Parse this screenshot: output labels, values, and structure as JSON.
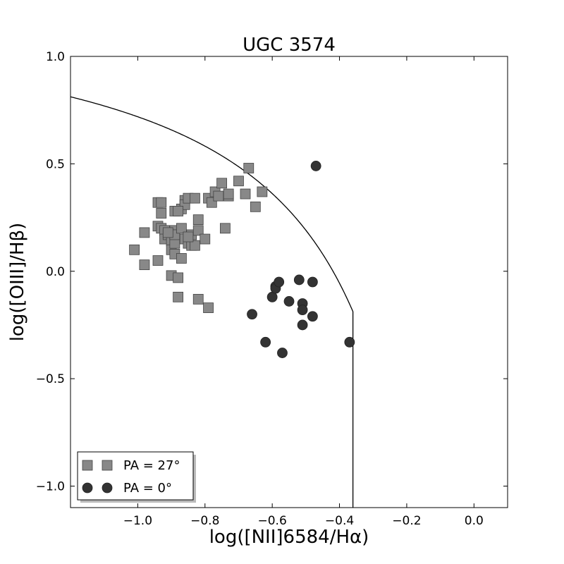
{
  "chart_data": {
    "type": "scatter",
    "title": "UGC 3574",
    "xlabel": "log([NII]6584/Hα)",
    "ylabel": "log([OIII]/Hβ)",
    "xlim": [
      -1.2,
      0.1
    ],
    "ylim": [
      -1.1,
      1.0
    ],
    "xticks": [
      -1.0,
      -0.8,
      -0.6,
      -0.4,
      -0.2,
      0.0
    ],
    "xtick_labels": [
      "−1.0",
      "−0.8",
      "−0.6",
      "−0.4",
      "−0.2",
      "0.0"
    ],
    "yticks": [
      -1.0,
      -0.5,
      0.0,
      0.5,
      1.0
    ],
    "ytick_labels": [
      "−1.0",
      "−0.5",
      "0.0",
      "0.5",
      "1.0"
    ],
    "grid": false,
    "legend_position": "bottom-left",
    "curve": {
      "name": "Kauffmann demarcation",
      "formula": "y = 0.61/(x - 0.05) + 1.3",
      "x_range": [
        -1.2,
        -0.36
      ]
    },
    "series": [
      {
        "name": "PA = 27°",
        "marker": "square",
        "color": "#888888",
        "points": [
          [
            -1.01,
            0.1
          ],
          [
            -0.98,
            0.03
          ],
          [
            -0.98,
            0.18
          ],
          [
            -0.94,
            0.21
          ],
          [
            -0.93,
            0.2
          ],
          [
            -0.94,
            0.32
          ],
          [
            -0.93,
            0.32
          ],
          [
            -0.93,
            0.27
          ],
          [
            -0.94,
            0.05
          ],
          [
            -0.92,
            0.19
          ],
          [
            -0.92,
            0.15
          ],
          [
            -0.91,
            0.17
          ],
          [
            -0.9,
            0.14
          ],
          [
            -0.9,
            0.1
          ],
          [
            -0.9,
            -0.02
          ],
          [
            -0.89,
            0.28
          ],
          [
            -0.89,
            0.19
          ],
          [
            -0.89,
            0.13
          ],
          [
            -0.89,
            0.17
          ],
          [
            -0.89,
            0.08
          ],
          [
            -0.88,
            -0.03
          ],
          [
            -0.88,
            -0.12
          ],
          [
            -0.87,
            0.29
          ],
          [
            -0.87,
            0.2
          ],
          [
            -0.87,
            0.06
          ],
          [
            -0.86,
            0.33
          ],
          [
            -0.86,
            0.31
          ],
          [
            -0.86,
            0.15
          ],
          [
            -0.85,
            0.34
          ],
          [
            -0.85,
            0.13
          ],
          [
            -0.84,
            0.17
          ],
          [
            -0.84,
            0.12
          ],
          [
            -0.83,
            0.34
          ],
          [
            -0.83,
            0.12
          ],
          [
            -0.82,
            0.24
          ],
          [
            -0.82,
            0.19
          ],
          [
            -0.82,
            -0.13
          ],
          [
            -0.8,
            0.15
          ],
          [
            -0.79,
            0.34
          ],
          [
            -0.79,
            -0.17
          ],
          [
            -0.78,
            0.32
          ],
          [
            -0.77,
            0.37
          ],
          [
            -0.76,
            0.35
          ],
          [
            -0.75,
            0.41
          ],
          [
            -0.74,
            0.2
          ],
          [
            -0.73,
            0.35
          ],
          [
            -0.73,
            0.36
          ],
          [
            -0.7,
            0.42
          ],
          [
            -0.68,
            0.36
          ],
          [
            -0.67,
            0.48
          ],
          [
            -0.65,
            0.3
          ],
          [
            -0.63,
            0.37
          ],
          [
            -0.85,
            0.16
          ],
          [
            -0.88,
            0.28
          ],
          [
            -0.91,
            0.18
          ]
        ]
      },
      {
        "name": "PA = 0°",
        "marker": "circle",
        "color": "#333333",
        "points": [
          [
            -0.47,
            0.49
          ],
          [
            -0.66,
            -0.2
          ],
          [
            -0.62,
            -0.33
          ],
          [
            -0.6,
            -0.12
          ],
          [
            -0.59,
            -0.07
          ],
          [
            -0.59,
            -0.08
          ],
          [
            -0.58,
            -0.05
          ],
          [
            -0.57,
            -0.38
          ],
          [
            -0.55,
            -0.14
          ],
          [
            -0.52,
            -0.04
          ],
          [
            -0.51,
            -0.15
          ],
          [
            -0.51,
            -0.18
          ],
          [
            -0.51,
            -0.25
          ],
          [
            -0.48,
            -0.05
          ],
          [
            -0.48,
            -0.21
          ],
          [
            -0.37,
            -0.33
          ]
        ]
      }
    ]
  }
}
